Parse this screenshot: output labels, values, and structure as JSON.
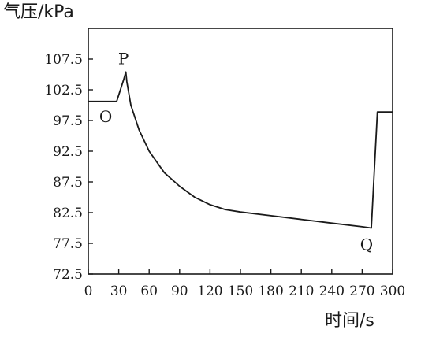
{
  "chart_data": {
    "type": "line",
    "title": "",
    "ylabel": "气压/kPa",
    "xlabel": "时间/s",
    "xlim": [
      0,
      300
    ],
    "ylim": [
      72.5,
      112.5
    ],
    "x_ticks": [
      0,
      30,
      60,
      90,
      120,
      150,
      180,
      210,
      240,
      270,
      300
    ],
    "x_tick_labels": [
      "0",
      "30",
      "60",
      "90",
      "120",
      "150",
      "180",
      "210",
      "240",
      "270",
      "300"
    ],
    "y_ticks": [
      72.5,
      77.5,
      82.5,
      87.5,
      92.5,
      97.5,
      102.5,
      107.5
    ],
    "y_tick_labels": [
      "72.5",
      "77.5",
      "82.5",
      "87.5",
      "92.5",
      "97.5",
      "102.5",
      "107.5"
    ],
    "grid": false,
    "series": [
      {
        "points": [
          [
            0,
            100.6
          ],
          [
            28,
            100.6
          ],
          [
            35,
            104.2
          ],
          [
            37,
            105.4
          ],
          [
            38,
            103.8
          ],
          [
            42,
            100.0
          ],
          [
            50,
            96.0
          ],
          [
            60,
            92.5
          ],
          [
            75,
            89.0
          ],
          [
            90,
            86.8
          ],
          [
            105,
            85.0
          ],
          [
            120,
            83.8
          ],
          [
            135,
            83.0
          ],
          [
            150,
            82.6
          ],
          [
            180,
            82.0
          ],
          [
            210,
            81.4
          ],
          [
            240,
            80.8
          ],
          [
            270,
            80.2
          ],
          [
            279,
            80.0
          ],
          [
            285,
            98.9
          ],
          [
            300,
            98.9
          ]
        ]
      }
    ],
    "annotations": [
      {
        "label": "O",
        "x": 28,
        "y": 100.6
      },
      {
        "label": "P",
        "x": 37,
        "y": 105.4
      },
      {
        "label": "Q",
        "x": 279,
        "y": 80.0
      }
    ]
  }
}
